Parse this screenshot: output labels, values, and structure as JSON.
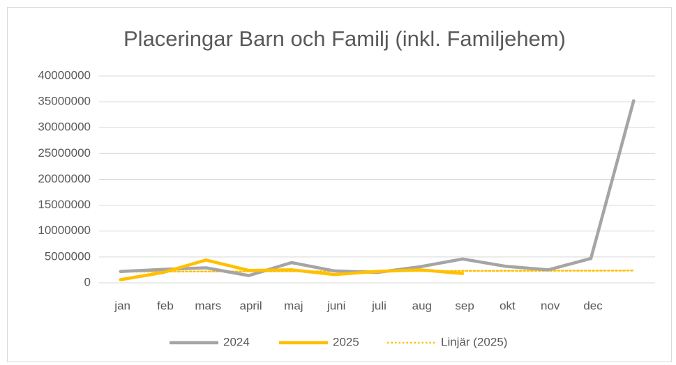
{
  "chart_data": {
    "type": "line",
    "title": "Placeringar Barn och Familj (inkl. Familjehem)",
    "categories": [
      "jan",
      "feb",
      "mars",
      "april",
      "maj",
      "juni",
      "juli",
      "aug",
      "sep",
      "okt",
      "nov",
      "dec",
      null
    ],
    "series": [
      {
        "name": "2024",
        "color": "#a5a5a5",
        "style": "solid",
        "values": [
          2200000,
          2600000,
          2900000,
          1400000,
          3900000,
          2300000,
          2000000,
          3100000,
          4600000,
          3200000,
          2500000,
          4700000,
          35200000
        ]
      },
      {
        "name": "2025",
        "color": "#ffc000",
        "style": "solid",
        "values": [
          600000,
          2000000,
          4400000,
          2400000,
          2500000,
          1600000,
          2200000,
          2500000,
          1800000,
          null,
          null,
          null,
          null
        ]
      },
      {
        "name": "Linjär (2025)",
        "color": "#ffc000",
        "style": "dotted",
        "values": [
          2150000,
          2170000,
          2190000,
          2200000,
          2220000,
          2240000,
          2260000,
          2280000,
          2300000,
          2310000,
          2330000,
          2350000,
          2370000
        ]
      }
    ],
    "ylim": [
      0,
      40000000
    ],
    "yticks": [
      0,
      5000000,
      10000000,
      15000000,
      20000000,
      25000000,
      30000000,
      35000000,
      40000000
    ],
    "grid": true,
    "legend": "bottom"
  }
}
